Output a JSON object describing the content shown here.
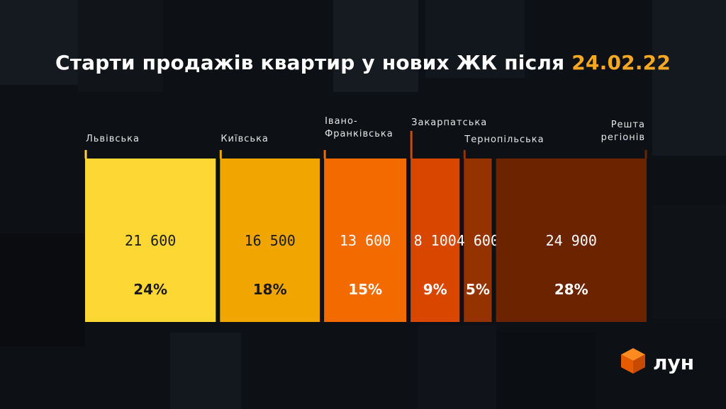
{
  "title": {
    "text": "Старти продажів квартир у нових ЖК після ",
    "date": "24.02.22"
  },
  "colors": {
    "background": "#0d1014",
    "accent": "#f5a623"
  },
  "chart_data": {
    "type": "bar",
    "title": "Старти продажів квартир у нових ЖК після 24.02.22",
    "categories": [
      [
        "Львівська"
      ],
      [
        "Київська"
      ],
      [
        "Івано-",
        "Франківська"
      ],
      [
        "Закарпатська"
      ],
      [
        "Тернопільська"
      ],
      [
        "Решта",
        "регіонів"
      ]
    ],
    "values": [
      21600,
      16500,
      13600,
      8100,
      4600,
      24900
    ],
    "value_labels": [
      "21 600",
      "16 500",
      "13 600",
      "8 100",
      "4 600",
      "24 900"
    ],
    "percent_labels": [
      "24%",
      "18%",
      "15%",
      "9%",
      "5%",
      "28%"
    ],
    "bar_colors": [
      "#fdd835",
      "#f0a500",
      "#f26a00",
      "#d94600",
      "#953300",
      "#6b2300"
    ],
    "text_colors": [
      "#1a1a1a",
      "#1a1a1a",
      "#ffffff",
      "#ffffff",
      "#ffffff",
      "#ffffff"
    ],
    "xlabel": "",
    "ylabel": "",
    "grid": false,
    "legend": "none"
  },
  "brand": {
    "logo_text": "лун",
    "logo_color": "#f26a00"
  }
}
